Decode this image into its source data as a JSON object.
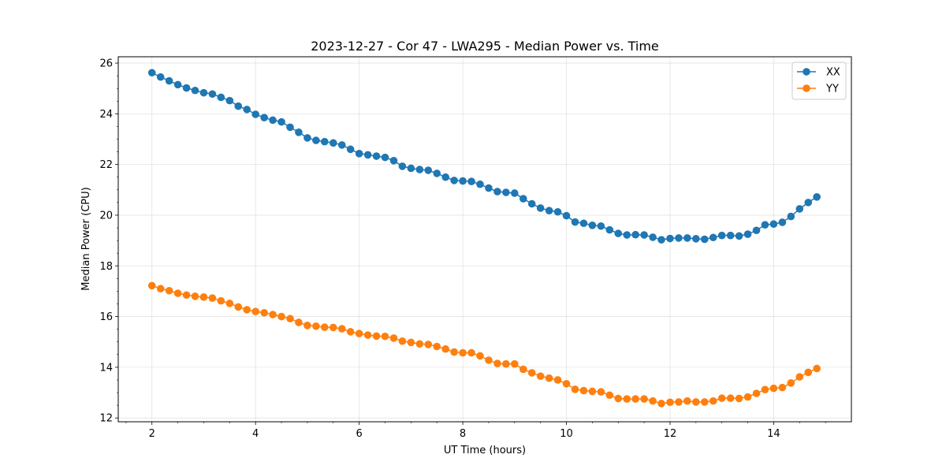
{
  "chart_data": {
    "type": "line",
    "title": "2023-12-27 - Cor 47 - LWA295 - Median Power vs. Time",
    "xlabel": "UT Time (hours)",
    "ylabel": "Median Power (CPU)",
    "xlim": [
      1.35,
      15.5
    ],
    "ylim": [
      11.85,
      26.25
    ],
    "xticks": [
      2,
      4,
      6,
      8,
      10,
      12,
      14
    ],
    "yticks": [
      12,
      14,
      16,
      18,
      20,
      22,
      24,
      26
    ],
    "grid": true,
    "legend_position": "top-right",
    "x": [
      2.0,
      2.167,
      2.333,
      2.5,
      2.667,
      2.833,
      3.0,
      3.167,
      3.333,
      3.5,
      3.667,
      3.833,
      4.0,
      4.167,
      4.333,
      4.5,
      4.667,
      4.833,
      5.0,
      5.167,
      5.333,
      5.5,
      5.667,
      5.833,
      6.0,
      6.167,
      6.333,
      6.5,
      6.667,
      6.833,
      7.0,
      7.167,
      7.333,
      7.5,
      7.667,
      7.833,
      8.0,
      8.167,
      8.333,
      8.5,
      8.667,
      8.833,
      9.0,
      9.167,
      9.333,
      9.5,
      9.667,
      9.833,
      10.0,
      10.167,
      10.333,
      10.5,
      10.667,
      10.833,
      11.0,
      11.167,
      11.333,
      11.5,
      11.667,
      11.833,
      12.0,
      12.167,
      12.333,
      12.5,
      12.667,
      12.833,
      13.0,
      13.167,
      13.333,
      13.5,
      13.667,
      13.833,
      14.0,
      14.167,
      14.333,
      14.5,
      14.667,
      14.833
    ],
    "series": [
      {
        "name": "XX",
        "color": "#1f77b4",
        "values": [
          25.62,
          25.45,
          25.3,
          25.15,
          25.02,
          24.92,
          24.83,
          24.78,
          24.65,
          24.52,
          24.3,
          24.17,
          23.98,
          23.85,
          23.75,
          23.68,
          23.47,
          23.27,
          23.05,
          22.95,
          22.9,
          22.85,
          22.77,
          22.6,
          22.43,
          22.38,
          22.33,
          22.28,
          22.15,
          21.93,
          21.85,
          21.8,
          21.77,
          21.65,
          21.5,
          21.37,
          21.35,
          21.33,
          21.22,
          21.07,
          20.93,
          20.9,
          20.87,
          20.65,
          20.45,
          20.28,
          20.18,
          20.13,
          19.98,
          19.73,
          19.68,
          19.6,
          19.57,
          19.42,
          19.28,
          19.22,
          19.23,
          19.22,
          19.13,
          19.03,
          19.08,
          19.1,
          19.1,
          19.07,
          19.05,
          19.12,
          19.2,
          19.2,
          19.18,
          19.25,
          19.4,
          19.62,
          19.65,
          19.72,
          19.95,
          20.25,
          20.5,
          20.72
        ]
      },
      {
        "name": "YY",
        "color": "#ff7f0e",
        "values": [
          17.22,
          17.1,
          17.02,
          16.92,
          16.85,
          16.8,
          16.77,
          16.73,
          16.62,
          16.52,
          16.38,
          16.27,
          16.2,
          16.15,
          16.08,
          16.0,
          15.92,
          15.77,
          15.65,
          15.62,
          15.58,
          15.57,
          15.52,
          15.4,
          15.33,
          15.27,
          15.23,
          15.22,
          15.15,
          15.03,
          14.98,
          14.92,
          14.9,
          14.82,
          14.72,
          14.6,
          14.57,
          14.57,
          14.45,
          14.28,
          14.15,
          14.13,
          14.13,
          13.92,
          13.78,
          13.65,
          13.57,
          13.5,
          13.35,
          13.13,
          13.08,
          13.05,
          13.03,
          12.9,
          12.77,
          12.75,
          12.75,
          12.75,
          12.67,
          12.57,
          12.62,
          12.63,
          12.67,
          12.63,
          12.63,
          12.67,
          12.78,
          12.78,
          12.77,
          12.83,
          12.97,
          13.12,
          13.17,
          13.2,
          13.38,
          13.62,
          13.8,
          13.95
        ]
      }
    ]
  }
}
